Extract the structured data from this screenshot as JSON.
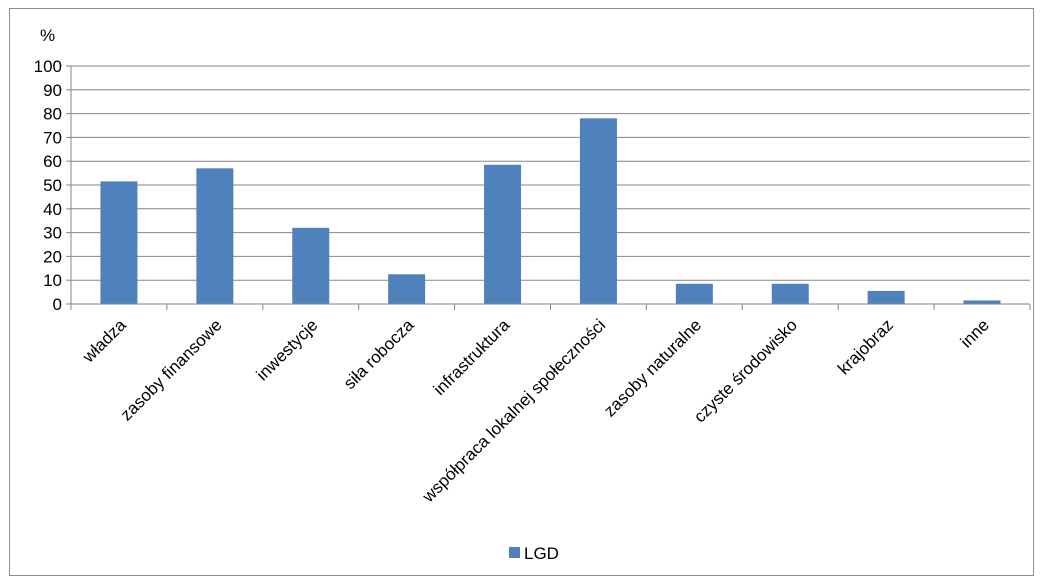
{
  "chart_data": {
    "type": "bar",
    "y_unit_label": "%",
    "categories": [
      "władza",
      "zasoby finansowe",
      "inwestycje",
      "siła robocza",
      "infrastruktura",
      "współpraca lokalnej społeczności",
      "zasoby naturalne",
      "czyste środowisko",
      "krajobraz",
      "inne"
    ],
    "series": [
      {
        "name": "LGD",
        "color": "#4f81bd",
        "values": [
          51.5,
          57,
          32,
          12.5,
          58.5,
          78,
          8.5,
          8.5,
          5.5,
          1.5
        ]
      }
    ],
    "ylim": [
      0,
      100
    ],
    "yticks": [
      0,
      10,
      20,
      30,
      40,
      50,
      60,
      70,
      80,
      90,
      100
    ],
    "grid": true,
    "legend_position": "bottom"
  }
}
